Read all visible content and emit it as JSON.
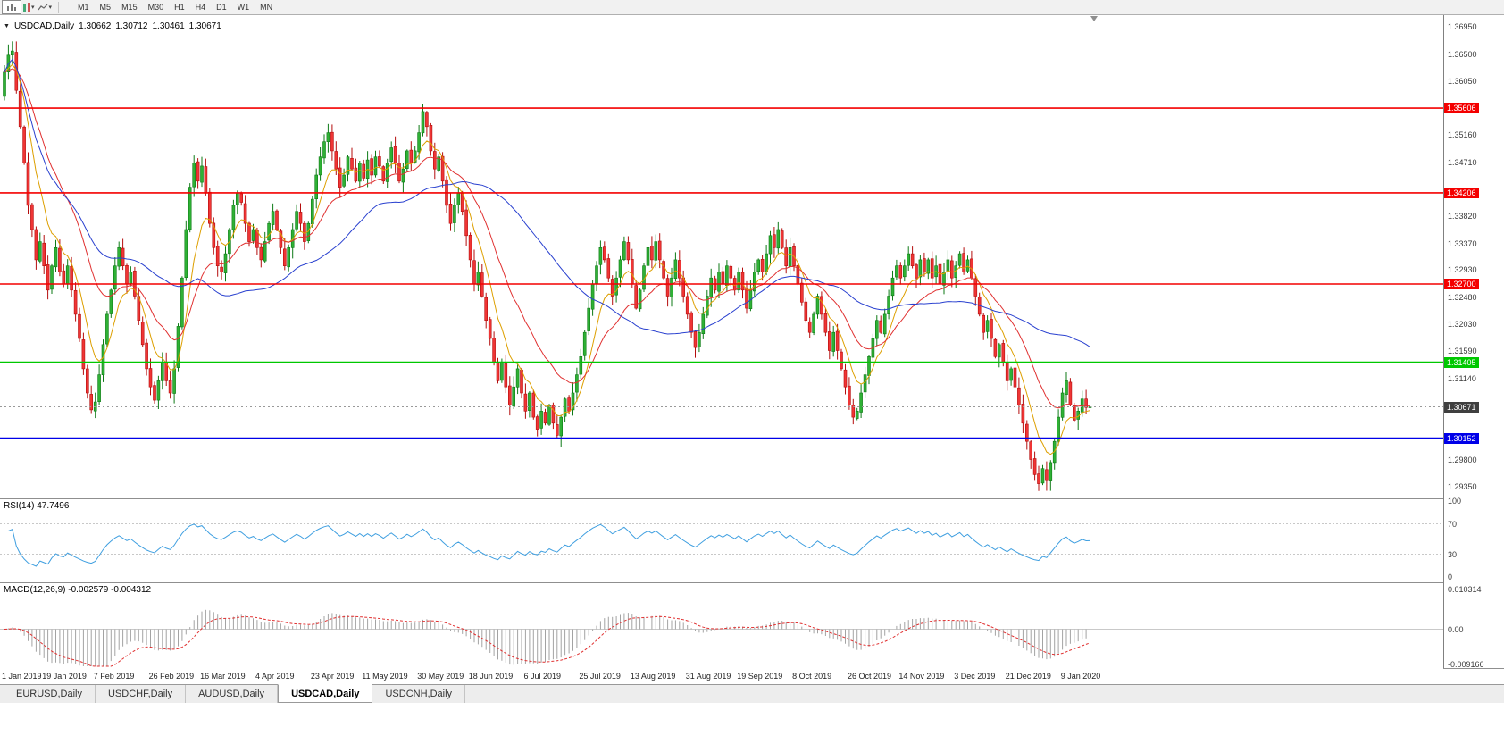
{
  "icons": {
    "collapse_arrow": "▼",
    "dropdown_caret": "▾"
  },
  "toolbar": {
    "timeframes": [
      "M1",
      "M5",
      "M15",
      "M30",
      "H1",
      "H4",
      "D1",
      "W1",
      "MN"
    ]
  },
  "main": {
    "symbol": "USDCAD,Daily",
    "open": "1.30662",
    "high": "1.30712",
    "low": "1.30461",
    "close": "1.30671"
  },
  "rsi_pane": {
    "label": "RSI(14) 47.7496"
  },
  "macd_pane": {
    "label": "MACD(12,26,9) -0.002579 -0.004312"
  },
  "tabs": {
    "items": [
      {
        "label": "EURUSD,Daily",
        "active": false
      },
      {
        "label": "USDCHF,Daily",
        "active": false
      },
      {
        "label": "AUDUSD,Daily",
        "active": false
      },
      {
        "label": "USDCAD,Daily",
        "active": true
      },
      {
        "label": "USDCNH,Daily",
        "active": false
      }
    ]
  },
  "chart_data": {
    "type": "candlestick",
    "symbol": "USDCAD",
    "timeframe": "Daily",
    "ohlc_current": {
      "open": 1.30662,
      "high": 1.30712,
      "low": 1.30461,
      "close": 1.30671
    },
    "price_axis_range": {
      "top": 1.3695,
      "bottom": 1.2935,
      "step": 0.0045
    },
    "scale_labels": [
      "1.36950",
      "1.36500",
      "1.36050",
      "1.35160",
      "1.34710",
      "1.33820",
      "1.33370",
      "1.32930",
      "1.32480",
      "1.32030",
      "1.31590",
      "1.31140",
      "1.29800",
      "1.29350"
    ],
    "levels": [
      {
        "price": 1.35606,
        "label": "1.35606",
        "color": "#f40000",
        "width": 1.6,
        "type": "resistance"
      },
      {
        "price": 1.34206,
        "label": "1.34206",
        "color": "#f40000",
        "width": 1.6,
        "type": "resistance"
      },
      {
        "price": 1.327,
        "label": "1.32700",
        "color": "#f40000",
        "width": 1.6,
        "type": "resistance"
      },
      {
        "price": 1.31405,
        "label": "1.31405",
        "color": "#00c800",
        "width": 2,
        "type": "support"
      },
      {
        "price": 1.30152,
        "label": "1.30152",
        "color": "#0000e8",
        "width": 2,
        "type": "support"
      }
    ],
    "current_price": {
      "value": 1.30671,
      "label": "1.30671",
      "tag_color": "#3f3f3f"
    },
    "moving_averages": [
      {
        "period": 8,
        "method": "ema",
        "color": "#dd9f00"
      },
      {
        "period": 21,
        "method": "ema",
        "color": "#e03030"
      },
      {
        "period": 50,
        "method": "sma",
        "color": "#2940cf"
      }
    ],
    "candle_colors": {
      "up_fill": "#2fb135",
      "up_stroke": "#0e7a16",
      "down_fill": "#ef3535",
      "down_stroke": "#b40d0d"
    },
    "closes": [
      1.362,
      1.3648,
      1.3655,
      1.359,
      1.353,
      1.347,
      1.34,
      1.336,
      1.331,
      1.334,
      1.33,
      1.326,
      1.33,
      1.333,
      1.329,
      1.327,
      1.33,
      1.326,
      1.322,
      1.318,
      1.313,
      1.309,
      1.3062,
      1.3075,
      1.312,
      1.317,
      1.322,
      1.326,
      1.33,
      1.333,
      1.33,
      1.327,
      1.329,
      1.325,
      1.321,
      1.317,
      1.313,
      1.31,
      1.3078,
      1.311,
      1.314,
      1.311,
      1.309,
      1.313,
      1.32,
      1.328,
      1.336,
      1.343,
      1.347,
      1.344,
      1.3465,
      1.342,
      1.337,
      1.333,
      1.33,
      1.329,
      1.332,
      1.336,
      1.34,
      1.342,
      1.3405,
      1.337,
      1.334,
      1.336,
      1.333,
      1.331,
      1.334,
      1.337,
      1.339,
      1.336,
      1.333,
      1.33,
      1.333,
      1.336,
      1.339,
      1.337,
      1.334,
      1.337,
      1.341,
      1.345,
      1.348,
      1.3505,
      1.352,
      1.349,
      1.346,
      1.343,
      1.345,
      1.348,
      1.346,
      1.344,
      1.347,
      1.3445,
      1.3475,
      1.345,
      1.348,
      1.3465,
      1.344,
      1.347,
      1.3495,
      1.347,
      1.344,
      1.346,
      1.349,
      1.347,
      1.349,
      1.352,
      1.3555,
      1.353,
      1.349,
      1.346,
      1.348,
      1.344,
      1.34,
      1.337,
      1.34,
      1.342,
      1.339,
      1.335,
      1.331,
      1.327,
      1.329,
      1.325,
      1.321,
      1.318,
      1.314,
      1.311,
      1.314,
      1.31,
      1.307,
      1.31,
      1.313,
      1.309,
      1.306,
      1.309,
      1.305,
      1.303,
      1.306,
      1.304,
      1.307,
      1.304,
      1.302,
      1.305,
      1.308,
      1.306,
      1.309,
      1.312,
      1.315,
      1.319,
      1.323,
      1.327,
      1.33,
      1.333,
      1.331,
      1.328,
      1.325,
      1.328,
      1.331,
      1.334,
      1.331,
      1.327,
      1.323,
      1.326,
      1.33,
      1.333,
      1.331,
      1.334,
      1.331,
      1.328,
      1.325,
      1.328,
      1.331,
      1.328,
      1.325,
      1.322,
      1.319,
      1.3165,
      1.319,
      1.322,
      1.325,
      1.328,
      1.326,
      1.329,
      1.327,
      1.33,
      1.328,
      1.326,
      1.329,
      1.326,
      1.323,
      1.326,
      1.329,
      1.331,
      1.329,
      1.332,
      1.335,
      1.333,
      1.336,
      1.333,
      1.33,
      1.333,
      1.33,
      1.327,
      1.324,
      1.321,
      1.319,
      1.322,
      1.325,
      1.322,
      1.319,
      1.316,
      1.319,
      1.316,
      1.313,
      1.31,
      1.307,
      1.305,
      1.306,
      1.309,
      1.312,
      1.315,
      1.318,
      1.321,
      1.319,
      1.322,
      1.325,
      1.328,
      1.33,
      1.328,
      1.33,
      1.332,
      1.33,
      1.328,
      1.331,
      1.329,
      1.331,
      1.328,
      1.33,
      1.327,
      1.329,
      1.331,
      1.328,
      1.33,
      1.332,
      1.329,
      1.331,
      1.328,
      1.325,
      1.322,
      1.319,
      1.321,
      1.318,
      1.315,
      1.317,
      1.314,
      1.311,
      1.313,
      1.31,
      1.307,
      1.304,
      1.301,
      1.298,
      1.2955,
      1.294,
      1.2965,
      1.2945,
      1.2975,
      1.301,
      1.305,
      1.309,
      1.311,
      1.307,
      1.3045,
      1.306,
      1.308,
      1.3066,
      1.30671
    ],
    "date_labels": {
      "bars": [
        1,
        15,
        28,
        42,
        55,
        69,
        83,
        96,
        110,
        123,
        137,
        151,
        164,
        178,
        191,
        205,
        219,
        232,
        246,
        259,
        273
      ],
      "texts": [
        "1 Jan 2019",
        "19 Jan 2019",
        "7 Feb 2019",
        "26 Feb 2019",
        "16 Mar 2019",
        "4 Apr 2019",
        "23 Apr 2019",
        "11 May 2019",
        "30 May 2019",
        "18 Jun 2019",
        "6 Jul 2019",
        "25 Jul 2019",
        "13 Aug 2019",
        "31 Aug 2019",
        "19 Sep 2019",
        "8 Oct 2019",
        "26 Oct 2019",
        "14 Nov 2019",
        "3 Dec 2019",
        "21 Dec 2019",
        "9 Jan 2020"
      ]
    },
    "indicators": {
      "rsi": {
        "period": 14,
        "value": 47.7496,
        "levels": [
          70,
          30
        ],
        "scale": [
          "100",
          "70",
          "30",
          "0"
        ],
        "color": "#3f9fe0"
      },
      "macd": {
        "fast": 12,
        "slow": 26,
        "signal": 9,
        "macd_value": -0.002579,
        "signal_value": -0.004312,
        "scale_top": "0.010314",
        "scale_zero": "0.00",
        "scale_bottom": "-0.009166",
        "hist_color": "#a3a3a3",
        "signal_color": "#e03030"
      }
    }
  }
}
